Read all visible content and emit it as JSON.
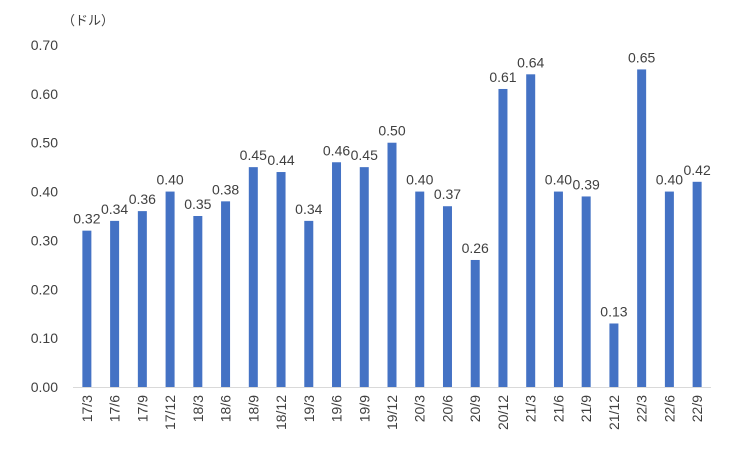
{
  "chart_data": {
    "type": "bar",
    "unit_label": "（ドル）",
    "categories": [
      "17/3",
      "17/6",
      "17/9",
      "17/12",
      "18/3",
      "18/6",
      "18/9",
      "18/12",
      "19/3",
      "19/6",
      "19/9",
      "19/12",
      "20/3",
      "20/6",
      "20/9",
      "20/12",
      "21/3",
      "21/6",
      "21/9",
      "21/12",
      "22/3",
      "22/6",
      "22/9"
    ],
    "values": [
      0.32,
      0.34,
      0.36,
      0.4,
      0.35,
      0.38,
      0.45,
      0.44,
      0.34,
      0.46,
      0.45,
      0.5,
      0.4,
      0.37,
      0.26,
      0.61,
      0.64,
      0.4,
      0.39,
      0.13,
      0.65,
      0.4,
      0.42
    ],
    "value_labels": [
      "0.32",
      "0.34",
      "0.36",
      "0.40",
      "0.35",
      "0.38",
      "0.45",
      "0.44",
      "0.34",
      "0.46",
      "0.45",
      "0.50",
      "0.40",
      "0.37",
      "0.26",
      "0.61",
      "0.64",
      "0.40",
      "0.39",
      "0.13",
      "0.65",
      "0.40",
      "0.42"
    ],
    "y_ticks": [
      "0.00",
      "0.10",
      "0.20",
      "0.30",
      "0.40",
      "0.50",
      "0.60",
      "0.70"
    ],
    "ylim": [
      0,
      0.7
    ],
    "grid": false,
    "bar_color": "#4472C4",
    "axis_color": "#D9D9D9",
    "text_color": "#404040"
  }
}
